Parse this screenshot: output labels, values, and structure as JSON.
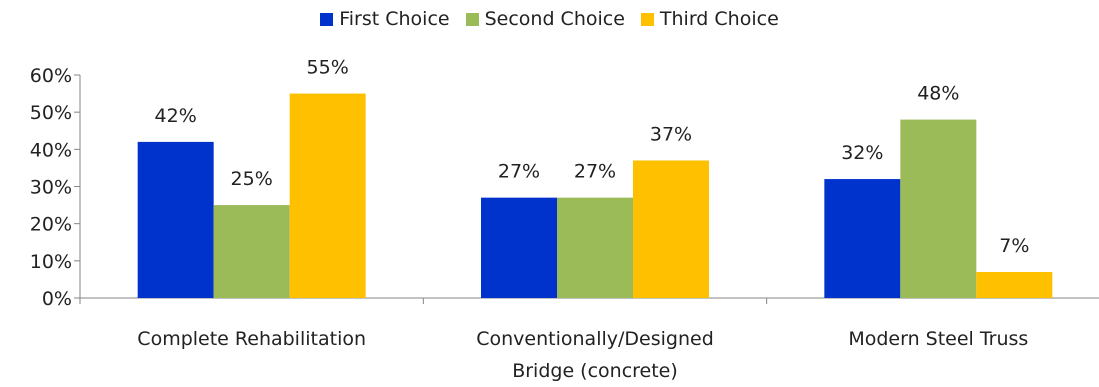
{
  "chart_data": {
    "type": "bar",
    "categories": [
      "Complete Rehabilitation",
      "Conventionally/Designed Bridge (concrete)",
      "Modern Steel Truss"
    ],
    "category_lines": [
      [
        "Complete Rehabilitation"
      ],
      [
        "Conventionally/Designed",
        "Bridge (concrete)"
      ],
      [
        "Modern Steel Truss"
      ]
    ],
    "series": [
      {
        "name": "First Choice",
        "color": "#0033cc",
        "values": [
          42,
          27,
          32
        ],
        "labels": [
          "42%",
          "27%",
          "32%"
        ]
      },
      {
        "name": "Second Choice",
        "color": "#9bbb59",
        "values": [
          25,
          27,
          48
        ],
        "labels": [
          "25%",
          "27%",
          "48%"
        ]
      },
      {
        "name": "Third Choice",
        "color": "#ffc000",
        "values": [
          55,
          37,
          7
        ],
        "labels": [
          "55%",
          "37%",
          "7%"
        ]
      }
    ],
    "ylim": [
      0,
      60
    ],
    "yticks": [
      0,
      10,
      20,
      30,
      40,
      50,
      60
    ],
    "ytick_labels": [
      "0%",
      "10%",
      "20%",
      "30%",
      "40%",
      "50%",
      "60%"
    ],
    "legend_position": "top",
    "grid": false
  }
}
